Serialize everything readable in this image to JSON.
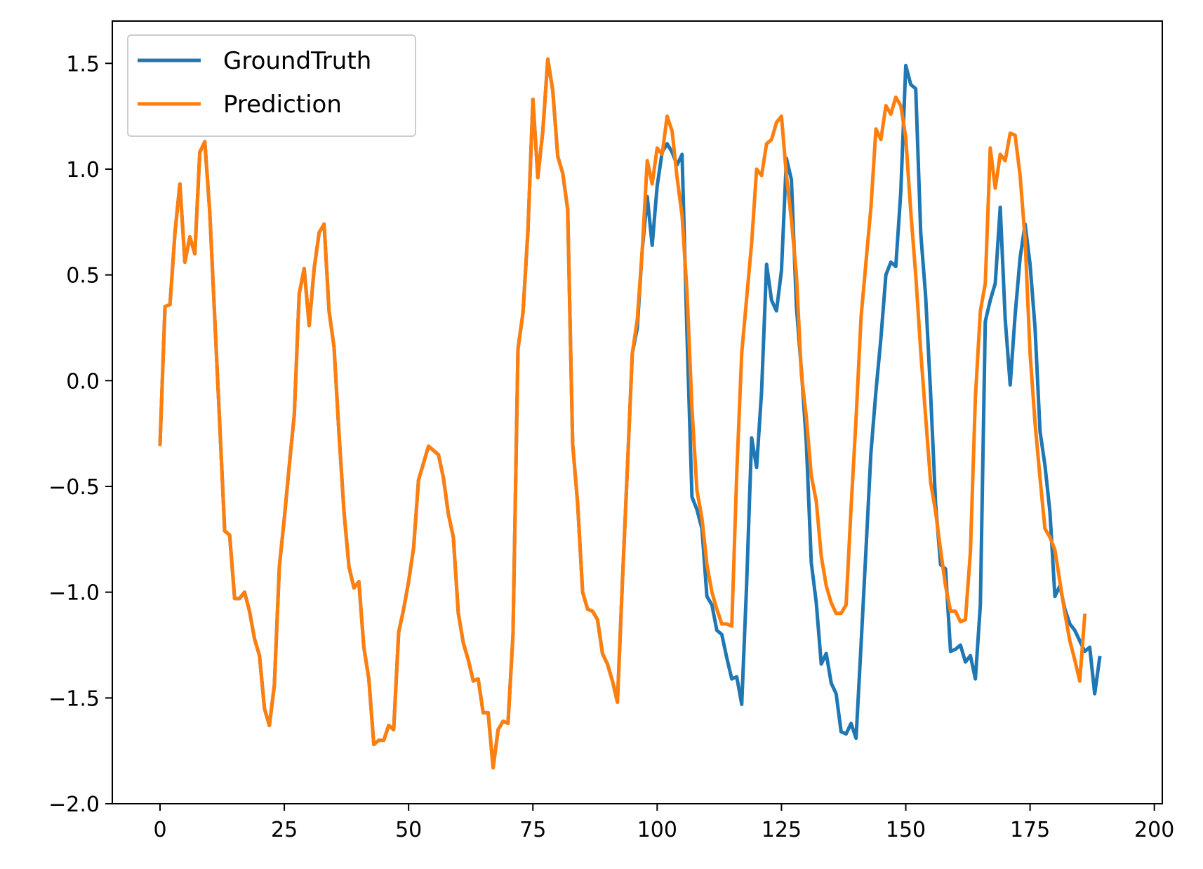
{
  "chart_data": {
    "type": "line",
    "title": "",
    "xlabel": "",
    "ylabel": "",
    "xlim": [
      -9.6,
      201.6
    ],
    "ylim": [
      -2.0,
      1.7
    ],
    "xticks": [
      0,
      25,
      50,
      75,
      100,
      125,
      150,
      175,
      200
    ],
    "xtick_labels": [
      "0",
      "25",
      "50",
      "75",
      "100",
      "125",
      "150",
      "175",
      "200"
    ],
    "yticks": [
      1.5,
      1.0,
      0.5,
      0.0,
      -0.5,
      -1.0,
      -1.5,
      -2.0
    ],
    "ytick_labels": [
      "1.5",
      "1.0",
      "0.5",
      "0.0",
      "−0.5",
      "−1.0",
      "−1.5",
      "−2.0"
    ],
    "grid": false,
    "legend_position": "top-left",
    "series": [
      {
        "name": "GroundTruth",
        "color": "#1f77b4",
        "x_start": 0,
        "values": [
          -0.3,
          0.35,
          0.36,
          0.7,
          0.93,
          0.56,
          0.68,
          0.6,
          1.08,
          1.13,
          0.8,
          0.3,
          -0.2,
          -0.71,
          -0.73,
          -1.03,
          -1.03,
          -1.0,
          -1.09,
          -1.22,
          -1.3,
          -1.55,
          -1.63,
          -1.44,
          -0.88,
          -0.65,
          -0.4,
          -0.16,
          0.41,
          0.53,
          0.26,
          0.53,
          0.7,
          0.74,
          0.33,
          0.16,
          -0.25,
          -0.62,
          -0.88,
          -0.98,
          -0.95,
          -1.26,
          -1.41,
          -1.72,
          -1.7,
          -1.7,
          -1.63,
          -1.65,
          -1.19,
          -1.08,
          -0.95,
          -0.79,
          -0.47,
          -0.39,
          -0.31,
          -0.33,
          -0.35,
          -0.46,
          -0.63,
          -0.74,
          -1.1,
          -1.24,
          -1.32,
          -1.42,
          -1.41,
          -1.57,
          -1.57,
          -1.83,
          -1.65,
          -1.61,
          -1.62,
          -1.2,
          0.15,
          0.32,
          0.71,
          1.33,
          0.96,
          1.18,
          1.52,
          1.37,
          1.06,
          0.98,
          0.81,
          -0.3,
          -0.58,
          -1.0,
          -1.08,
          -1.09,
          -1.13,
          -1.29,
          -1.34,
          -1.42,
          -1.52,
          -0.95,
          -0.42,
          0.13,
          0.25,
          0.62,
          0.87,
          0.64,
          0.92,
          1.08,
          1.12,
          1.08,
          1.02,
          1.07,
          0.22,
          -0.55,
          -0.61,
          -0.7,
          -1.02,
          -1.06,
          -1.18,
          -1.2,
          -1.31,
          -1.41,
          -1.4,
          -1.53,
          -0.96,
          -0.27,
          -0.41,
          -0.05,
          0.55,
          0.38,
          0.33,
          0.52,
          1.05,
          0.95,
          0.35,
          0.05,
          -0.29,
          -0.86,
          -1.05,
          -1.34,
          -1.29,
          -1.43,
          -1.48,
          -1.66,
          -1.67,
          -1.62,
          -1.69,
          -1.25,
          -0.8,
          -0.34,
          -0.05,
          0.2,
          0.5,
          0.56,
          0.54,
          0.89,
          1.49,
          1.4,
          1.38,
          0.7,
          0.4,
          -0.06,
          -0.58,
          -0.87,
          -0.89,
          -1.28,
          -1.27,
          -1.25,
          -1.33,
          -1.3,
          -1.41,
          -1.06,
          0.28,
          0.38,
          0.46,
          0.82,
          0.29,
          -0.02,
          0.31,
          0.58,
          0.74,
          0.55,
          0.25,
          -0.24,
          -0.4,
          -0.62,
          -1.02,
          -0.97,
          -1.08,
          -1.15,
          -1.18,
          -1.23,
          -1.28,
          -1.26,
          -1.48,
          -1.31
        ]
      },
      {
        "name": "Prediction",
        "color": "#ff7f0e",
        "x_start": 0,
        "values": [
          -0.3,
          0.35,
          0.36,
          0.7,
          0.93,
          0.56,
          0.68,
          0.6,
          1.08,
          1.13,
          0.8,
          0.3,
          -0.2,
          -0.71,
          -0.73,
          -1.03,
          -1.03,
          -1.0,
          -1.09,
          -1.22,
          -1.3,
          -1.55,
          -1.63,
          -1.44,
          -0.88,
          -0.65,
          -0.4,
          -0.16,
          0.41,
          0.53,
          0.26,
          0.53,
          0.7,
          0.74,
          0.33,
          0.16,
          -0.25,
          -0.62,
          -0.88,
          -0.98,
          -0.95,
          -1.26,
          -1.41,
          -1.72,
          -1.7,
          -1.7,
          -1.63,
          -1.65,
          -1.19,
          -1.08,
          -0.95,
          -0.79,
          -0.47,
          -0.39,
          -0.31,
          -0.33,
          -0.35,
          -0.46,
          -0.63,
          -0.74,
          -1.1,
          -1.24,
          -1.32,
          -1.42,
          -1.41,
          -1.57,
          -1.57,
          -1.83,
          -1.65,
          -1.61,
          -1.62,
          -1.2,
          0.15,
          0.32,
          0.71,
          1.33,
          0.96,
          1.18,
          1.52,
          1.37,
          1.06,
          0.98,
          0.81,
          -0.3,
          -0.58,
          -1.0,
          -1.08,
          -1.09,
          -1.13,
          -1.29,
          -1.34,
          -1.42,
          -1.52,
          -0.95,
          -0.42,
          0.13,
          0.29,
          0.62,
          1.04,
          0.93,
          1.1,
          1.07,
          1.25,
          1.18,
          0.96,
          0.78,
          0.42,
          -0.13,
          -0.52,
          -0.65,
          -0.87,
          -1.0,
          -1.08,
          -1.15,
          -1.15,
          -1.16,
          -0.44,
          0.13,
          0.39,
          0.65,
          1.0,
          0.97,
          1.12,
          1.14,
          1.22,
          1.25,
          0.97,
          0.76,
          0.5,
          0.03,
          -0.17,
          -0.45,
          -0.57,
          -0.83,
          -0.97,
          -1.05,
          -1.1,
          -1.1,
          -1.06,
          -0.6,
          -0.18,
          0.3,
          0.56,
          0.82,
          1.19,
          1.14,
          1.3,
          1.26,
          1.34,
          1.3,
          1.15,
          0.8,
          0.5,
          0.14,
          -0.17,
          -0.48,
          -0.62,
          -0.8,
          -0.97,
          -1.09,
          -1.09,
          -1.14,
          -1.13,
          -0.81,
          -0.08,
          0.33,
          0.46,
          1.1,
          0.91,
          1.07,
          1.04,
          1.17,
          1.16,
          0.97,
          0.67,
          0.13,
          -0.2,
          -0.46,
          -0.7,
          -0.74,
          -0.8,
          -0.95,
          -1.1,
          -1.23,
          -1.32,
          -1.42,
          -1.11
        ]
      }
    ]
  }
}
